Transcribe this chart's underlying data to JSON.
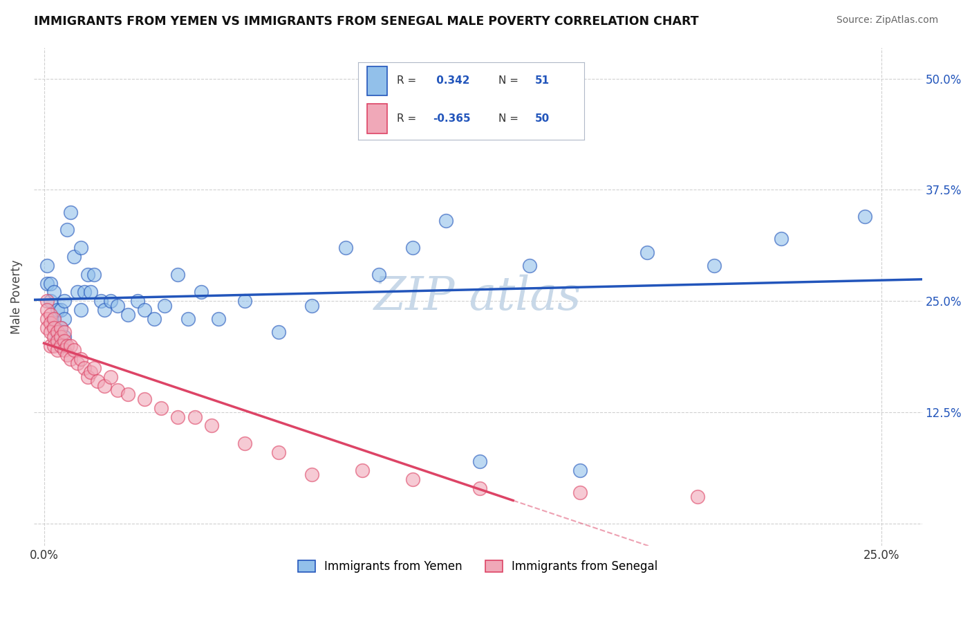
{
  "title": "IMMIGRANTS FROM YEMEN VS IMMIGRANTS FROM SENEGAL MALE POVERTY CORRELATION CHART",
  "source": "Source: ZipAtlas.com",
  "ylabel": "Male Poverty",
  "xlim": [
    -0.003,
    0.262
  ],
  "ylim": [
    -0.025,
    0.535
  ],
  "y_ticks": [
    0.0,
    0.125,
    0.25,
    0.375,
    0.5
  ],
  "legend_labels": [
    "Immigrants from Yemen",
    "Immigrants from Senegal"
  ],
  "r_yemen": 0.342,
  "n_yemen": 51,
  "r_senegal": -0.365,
  "n_senegal": 50,
  "color_yemen": "#92c0ea",
  "color_senegal": "#f0a8b8",
  "trendline_yemen": "#2255bb",
  "trendline_senegal": "#dd4466",
  "background_color": "#ffffff",
  "grid_color": "#d0d0d0",
  "watermark_color": "#c8d8e8",
  "yemen_x": [
    0.001,
    0.001,
    0.002,
    0.002,
    0.003,
    0.003,
    0.004,
    0.004,
    0.005,
    0.005,
    0.005,
    0.006,
    0.006,
    0.006,
    0.007,
    0.008,
    0.009,
    0.01,
    0.011,
    0.011,
    0.012,
    0.013,
    0.014,
    0.015,
    0.017,
    0.018,
    0.02,
    0.022,
    0.025,
    0.028,
    0.03,
    0.033,
    0.036,
    0.04,
    0.043,
    0.047,
    0.052,
    0.06,
    0.07,
    0.08,
    0.09,
    0.1,
    0.11,
    0.12,
    0.13,
    0.145,
    0.16,
    0.18,
    0.2,
    0.22,
    0.245
  ],
  "yemen_y": [
    0.27,
    0.29,
    0.25,
    0.27,
    0.23,
    0.26,
    0.21,
    0.24,
    0.2,
    0.22,
    0.24,
    0.21,
    0.23,
    0.25,
    0.33,
    0.35,
    0.3,
    0.26,
    0.24,
    0.31,
    0.26,
    0.28,
    0.26,
    0.28,
    0.25,
    0.24,
    0.25,
    0.245,
    0.235,
    0.25,
    0.24,
    0.23,
    0.245,
    0.28,
    0.23,
    0.26,
    0.23,
    0.25,
    0.215,
    0.245,
    0.31,
    0.28,
    0.31,
    0.34,
    0.07,
    0.29,
    0.06,
    0.305,
    0.29,
    0.32,
    0.345
  ],
  "senegal_x": [
    0.001,
    0.001,
    0.001,
    0.001,
    0.002,
    0.002,
    0.002,
    0.002,
    0.003,
    0.003,
    0.003,
    0.003,
    0.004,
    0.004,
    0.004,
    0.005,
    0.005,
    0.005,
    0.006,
    0.006,
    0.006,
    0.007,
    0.007,
    0.008,
    0.008,
    0.009,
    0.01,
    0.011,
    0.012,
    0.013,
    0.014,
    0.015,
    0.016,
    0.018,
    0.02,
    0.022,
    0.025,
    0.03,
    0.035,
    0.04,
    0.045,
    0.05,
    0.06,
    0.07,
    0.08,
    0.095,
    0.11,
    0.13,
    0.16,
    0.195
  ],
  "senegal_y": [
    0.25,
    0.24,
    0.23,
    0.22,
    0.235,
    0.225,
    0.215,
    0.2,
    0.23,
    0.22,
    0.21,
    0.2,
    0.215,
    0.205,
    0.195,
    0.22,
    0.21,
    0.2,
    0.215,
    0.205,
    0.195,
    0.2,
    0.19,
    0.2,
    0.185,
    0.195,
    0.18,
    0.185,
    0.175,
    0.165,
    0.17,
    0.175,
    0.16,
    0.155,
    0.165,
    0.15,
    0.145,
    0.14,
    0.13,
    0.12,
    0.12,
    0.11,
    0.09,
    0.08,
    0.055,
    0.06,
    0.05,
    0.04,
    0.035,
    0.03
  ],
  "senegal_solid_xlim": [
    0.0,
    0.14
  ],
  "senegal_dash_xlim": [
    0.14,
    0.262
  ]
}
